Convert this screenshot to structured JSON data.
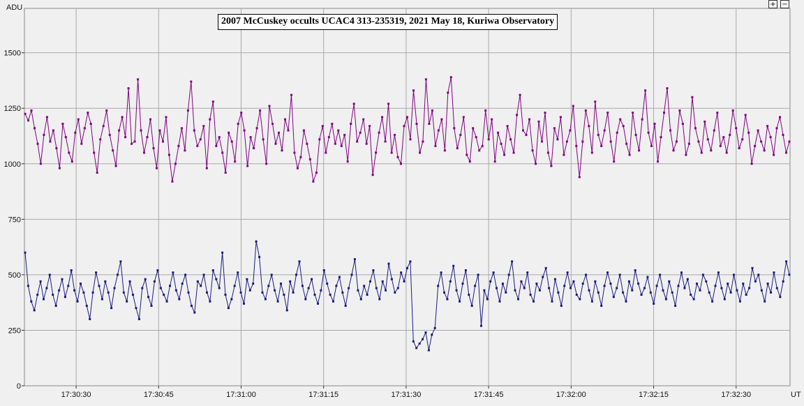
{
  "title": "2007 McCuskey occults UCAC4 313-235319, 2021 May 18, Kuriwa Observatory",
  "zoom": {
    "in_label": "+",
    "out_label": "−"
  },
  "colors": {
    "background": "#f0f0f0",
    "grid": "#a9a9a9",
    "series_top": "#800080",
    "series_bottom": "#1a1a80"
  },
  "chart_data": {
    "type": "line",
    "title": "2007 McCuskey occults UCAC4 313-235319, 2021 May 18, Kuriwa Observatory",
    "xlabel": "UT",
    "ylabel": "ADU",
    "xlim": [
      "17:30:20.6",
      "17:32:39.8"
    ],
    "ylim": [
      0,
      1700
    ],
    "grid": true,
    "x_ticks": [
      "17:30:30",
      "17:30:45",
      "17:31:00",
      "17:31:15",
      "17:31:30",
      "17:31:45",
      "17:32:00",
      "17:32:15",
      "17:32:30"
    ],
    "y_ticks": [
      0,
      250,
      500,
      750,
      1000,
      1250,
      1500
    ],
    "sampling_seconds": 0.1,
    "series": [
      {
        "color": "#800080",
        "mean": 1120,
        "values": [
          1225,
          1195,
          1240,
          1160,
          1090,
          1000,
          1130,
          1210,
          1100,
          1150,
          1070,
          980,
          1180,
          1120,
          1050,
          1010,
          1140,
          1200,
          1090,
          1160,
          1230,
          1180,
          1050,
          960,
          1110,
          1170,
          1240,
          1130,
          1060,
          990,
          1150,
          1210,
          1120,
          1340,
          1090,
          1100,
          1380,
          1150,
          1050,
          1120,
          1200,
          1070,
          980,
          1150,
          1100,
          1210,
          1040,
          920,
          1000,
          1080,
          1160,
          1060,
          1240,
          1370,
          1150,
          1080,
          1110,
          1170,
          980,
          1200,
          1280,
          1080,
          1120,
          1050,
          960,
          1140,
          1100,
          1010,
          1180,
          1230,
          1150,
          990,
          1120,
          1070,
          1160,
          1240,
          1110,
          1000,
          1260,
          1180,
          1090,
          1140,
          1060,
          1200,
          1150,
          1310,
          1050,
          980,
          1030,
          1150,
          1090,
          1020,
          920,
          960,
          1110,
          1170,
          1050,
          1120,
          1180,
          1090,
          1150,
          1080,
          1130,
          1010,
          1180,
          1270,
          1100,
          1140,
          1200,
          1090,
          1170,
          950,
          1050,
          1140,
          1210,
          1100,
          1270,
          1050,
          1130,
          1030,
          1000,
          1170,
          1210,
          1110,
          1330,
          1180,
          1050,
          1100,
          1380,
          1180,
          1240,
          1080,
          1150,
          1200,
          1060,
          1320,
          1390,
          1160,
          1070,
          1130,
          1210,
          1040,
          1010,
          1160,
          1120,
          1060,
          1080,
          1240,
          1110,
          1200,
          1010,
          1140,
          1090,
          1040,
          1170,
          1110,
          1050,
          1220,
          1310,
          1150,
          1130,
          1200,
          1060,
          1000,
          1190,
          1100,
          1230,
          1050,
          990,
          1160,
          1110,
          1210,
          1040,
          1100,
          1150,
          1260,
          1080,
          940,
          1100,
          1240,
          1170,
          1050,
          1280,
          1130,
          1080,
          1150,
          1230,
          1100,
          1010,
          1140,
          1200,
          1170,
          1090,
          1040,
          1230,
          1130,
          1060,
          1200,
          1330,
          1140,
          1080,
          1180,
          1010,
          1120,
          1230,
          1340,
          1150,
          1060,
          1100,
          1240,
          1180,
          1040,
          1090,
          1300,
          1160,
          1100,
          1050,
          1190,
          1110,
          1060,
          1150,
          1230,
          1080,
          1120,
          1050,
          1130,
          1240,
          1160,
          1070,
          1110,
          1220,
          1140,
          1000,
          1080,
          1150,
          1100,
          1060,
          1170,
          1120,
          1040,
          1160,
          1210,
          1130,
          1050,
          1100
        ]
      },
      {
        "color": "#1a1a80",
        "mean": 460,
        "values": [
          600,
          450,
          380,
          340,
          410,
          470,
          390,
          440,
          500,
          410,
          360,
          430,
          480,
          400,
          450,
          520,
          430,
          380,
          460,
          420,
          360,
          300,
          420,
          510,
          450,
          390,
          470,
          420,
          350,
          440,
          500,
          560,
          420,
          380,
          470,
          410,
          350,
          300,
          440,
          480,
          400,
          360,
          470,
          520,
          440,
          410,
          380,
          450,
          510,
          430,
          390,
          460,
          500,
          420,
          360,
          330,
          470,
          450,
          500,
          420,
          380,
          520,
          480,
          440,
          600,
          410,
          350,
          390,
          450,
          510,
          420,
          370,
          480,
          430,
          460,
          650,
          580,
          420,
          390,
          450,
          500,
          430,
          380,
          460,
          410,
          340,
          470,
          420,
          500,
          560,
          450,
          390,
          440,
          480,
          410,
          370,
          430,
          520,
          460,
          410,
          380,
          450,
          490,
          420,
          360,
          440,
          500,
          570,
          430,
          390,
          450,
          410,
          470,
          520,
          440,
          390,
          470,
          430,
          550,
          480,
          420,
          440,
          510,
          470,
          530,
          560,
          200,
          170,
          190,
          210,
          240,
          160,
          230,
          260,
          450,
          510,
          420,
          390,
          470,
          540,
          430,
          380,
          460,
          520,
          410,
          360,
          450,
          500,
          270,
          430,
          390,
          470,
          510,
          440,
          380,
          460,
          420,
          500,
          560,
          430,
          390,
          470,
          440,
          510,
          410,
          380,
          460,
          430,
          490,
          530,
          440,
          380,
          480,
          420,
          360,
          450,
          510,
          440,
          470,
          410,
          390,
          460,
          500,
          430,
          380,
          470,
          420,
          360,
          450,
          510,
          460,
          400,
          440,
          500,
          420,
          380,
          470,
          430,
          520,
          460,
          410,
          440,
          490,
          420,
          370,
          450,
          500,
          430,
          390,
          470,
          420,
          360,
          450,
          510,
          440,
          480,
          410,
          390,
          460,
          430,
          500,
          470,
          420,
          380,
          450,
          510,
          440,
          390,
          460,
          420,
          500,
          430,
          380,
          460,
          410,
          440,
          530,
          470,
          500,
          430,
          380,
          460,
          420,
          510,
          440,
          400,
          470,
          560,
          500
        ]
      }
    ]
  }
}
